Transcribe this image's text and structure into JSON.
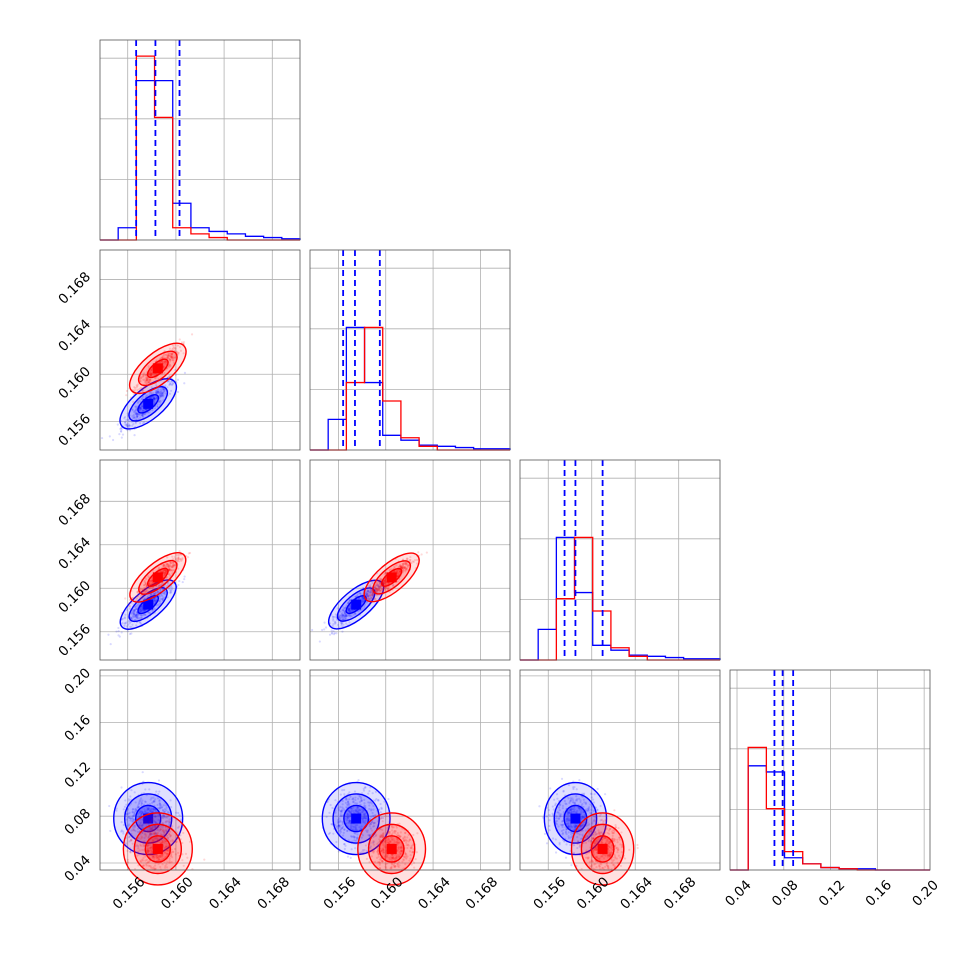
{
  "chart_data": {
    "type": "scatter",
    "title": "",
    "subtitle": "",
    "dims": 4,
    "series": [
      {
        "color": "#0000ff",
        "hist": [
          [
            0,
            0.1,
            1.3,
            1.3,
            0.3,
            0.1,
            0.07,
            0.05,
            0.03,
            0.02,
            0.01
          ],
          [
            0,
            0.25,
            1.0,
            0.55,
            0.12,
            0.08,
            0.04,
            0.03,
            0.02,
            0.01,
            0.01
          ],
          [
            0,
            0.25,
            1.0,
            0.55,
            0.12,
            0.08,
            0.04,
            0.03,
            0.02,
            0.01,
            0.01
          ],
          [
            0,
            0.85,
            0.8,
            0.1,
            0.05,
            0.02,
            0.01,
            0.01,
            0.0,
            0.0,
            0.0
          ]
        ]
      },
      {
        "color": "#ff0000",
        "hist": [
          [
            0,
            0.0,
            1.5,
            1.0,
            0.1,
            0.05,
            0.02,
            0.0,
            0.0,
            0.0,
            0.0
          ],
          [
            0,
            0.0,
            0.55,
            1.0,
            0.4,
            0.1,
            0.03,
            0.0,
            0.0,
            0.0,
            0.0
          ],
          [
            0,
            0.0,
            0.5,
            1.0,
            0.4,
            0.1,
            0.03,
            0.0,
            0.0,
            0.0,
            0.0
          ],
          [
            0,
            1.0,
            0.5,
            0.15,
            0.05,
            0.02,
            0.01,
            0.0,
            0.0,
            0.0,
            0.0
          ]
        ]
      }
    ],
    "quantile_lines": [
      [
        0.1567,
        0.1583,
        0.1603
      ],
      [
        0.1564,
        0.1574,
        0.1595
      ],
      [
        0.1575,
        0.1585,
        0.161
      ],
      [
        0.072,
        0.079,
        0.088
      ]
    ],
    "quantile_line_color": "#0000ff",
    "axis_ranges": [
      [
        0.1537,
        0.1703
      ],
      [
        0.1536,
        0.1705
      ],
      [
        0.1534,
        0.1718
      ],
      [
        0.034,
        0.205
      ]
    ],
    "tick_labels": {
      "x": [
        [
          "0.156",
          "0.160",
          "0.164",
          "0.168"
        ],
        [
          "0.156",
          "0.160",
          "0.164",
          "0.168"
        ],
        [
          "0.156",
          "0.160",
          "0.164",
          "0.168"
        ],
        [
          "0.04",
          "0.08",
          "0.12",
          "0.16",
          "0.20"
        ]
      ],
      "y": [
        [],
        [
          "0.156",
          "0.160",
          "0.164",
          "0.168"
        ],
        [
          "0.156",
          "0.160",
          "0.164",
          "0.168"
        ],
        [
          "0.04",
          "0.08",
          "0.12",
          "0.16",
          "0.20"
        ]
      ]
    },
    "tick_values": {
      "x": [
        [
          0.156,
          0.16,
          0.164,
          0.168
        ],
        [
          0.156,
          0.16,
          0.164,
          0.168
        ],
        [
          0.156,
          0.16,
          0.164,
          0.168
        ],
        [
          0.04,
          0.08,
          0.12,
          0.16,
          0.2
        ]
      ]
    },
    "scatter_centers": {
      "blue": [
        0.1577,
        0.1575,
        0.1585,
        0.078
      ],
      "red": [
        0.1585,
        0.1605,
        0.161,
        0.052
      ]
    },
    "grid": true,
    "legend": "none"
  }
}
